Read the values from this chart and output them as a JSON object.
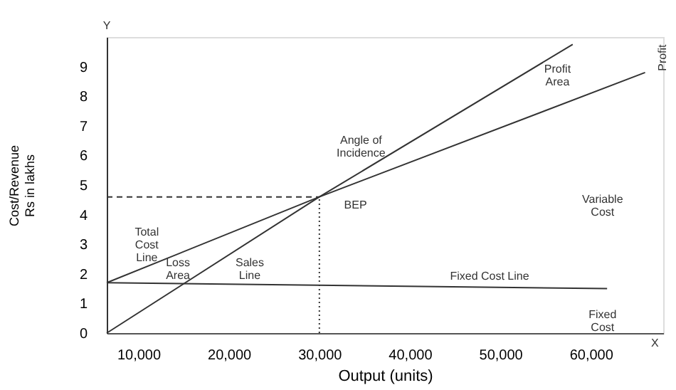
{
  "chart_data": {
    "type": "line",
    "xlabel": "Output (units)",
    "ylabel": "Cost/Revenue\nRs in lakhs",
    "xlim": [
      6500,
      68000
    ],
    "ylim": [
      0,
      10
    ],
    "xticks": [
      {
        "value": 10000,
        "label": "10,000"
      },
      {
        "value": 20000,
        "label": "20,000"
      },
      {
        "value": 30000,
        "label": "30,000"
      },
      {
        "value": 40000,
        "label": "40,000"
      },
      {
        "value": 50000,
        "label": "50,000"
      },
      {
        "value": 60000,
        "label": "60,000"
      }
    ],
    "yticks": [
      0,
      1,
      2,
      3,
      4,
      5,
      6,
      7,
      8,
      9
    ],
    "grid": false,
    "marker": "none",
    "line_style": "solid",
    "series": [
      {
        "color": "#333333",
        "x": [
          6500,
          30000,
          58000
        ],
        "values": [
          0,
          4.6,
          9.75
        ]
      },
      {
        "color": "#333333",
        "x": [
          6500,
          30000,
          66000
        ],
        "values": [
          1.7,
          4.6,
          8.8
        ]
      },
      {
        "color": "#333333",
        "x": [
          6500,
          61800
        ],
        "values": [
          1.7,
          1.5
        ]
      }
    ],
    "ref_lines": [
      {
        "axis": "y",
        "value": 4.6,
        "line_style": "dashed"
      },
      {
        "axis": "x",
        "value": 30000,
        "line_style": "dotted"
      }
    ],
    "annotations": [
      "Total\nCost\nLine",
      "Loss\nArea",
      "Sales\nLine",
      "Fixed Cost Line",
      "Fixed\nCost",
      "Variable\nCost",
      "Profit\nArea",
      "Angle of\nIncidence",
      "BEP",
      "Y",
      "X",
      "Profit"
    ]
  }
}
